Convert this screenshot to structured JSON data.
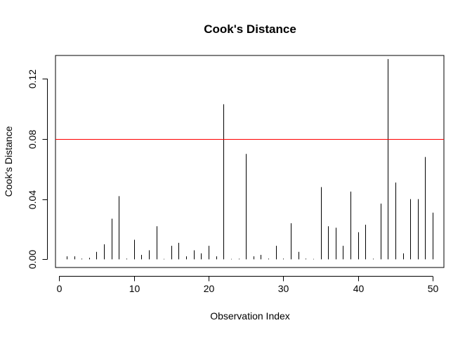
{
  "chart_data": {
    "type": "bar",
    "style": "spike",
    "title": "Cook's Distance",
    "xlabel": "Observation Index",
    "ylabel": "Cook's Distance",
    "xlim": [
      -0.5,
      51.5
    ],
    "ylim": [
      -0.0054,
      0.1354
    ],
    "x_ticks": [
      0,
      10,
      20,
      30,
      40,
      50
    ],
    "y_ticks": [
      0.0,
      0.04,
      0.08,
      0.12
    ],
    "y_tick_labels": [
      "0.00",
      "0.04",
      "0.08",
      "0.12"
    ],
    "grid": false,
    "threshold": {
      "value": 0.08,
      "color": "#ff0000"
    },
    "x": [
      1,
      2,
      3,
      4,
      5,
      6,
      7,
      8,
      9,
      10,
      11,
      12,
      13,
      14,
      15,
      16,
      17,
      18,
      19,
      20,
      21,
      22,
      23,
      24,
      25,
      26,
      27,
      28,
      29,
      30,
      31,
      32,
      33,
      34,
      35,
      36,
      37,
      38,
      39,
      40,
      41,
      42,
      43,
      44,
      45,
      46,
      47,
      48,
      49,
      50
    ],
    "values": [
      0.002,
      0.002,
      0.0005,
      0.001,
      0.005,
      0.01,
      0.027,
      0.042,
      0.0005,
      0.013,
      0.003,
      0.006,
      0.022,
      0.0003,
      0.009,
      0.011,
      0.002,
      0.006,
      0.004,
      0.009,
      0.002,
      0.103,
      0.0003,
      0.0004,
      0.07,
      0.002,
      0.003,
      0.0005,
      0.009,
      0.0005,
      0.024,
      0.005,
      0.0005,
      0.0003,
      0.048,
      0.022,
      0.021,
      0.009,
      0.045,
      0.018,
      0.023,
      0.0004,
      0.037,
      0.133,
      0.051,
      0.004,
      0.04,
      0.04,
      0.068,
      0.031
    ],
    "bar_color": "#000000"
  }
}
